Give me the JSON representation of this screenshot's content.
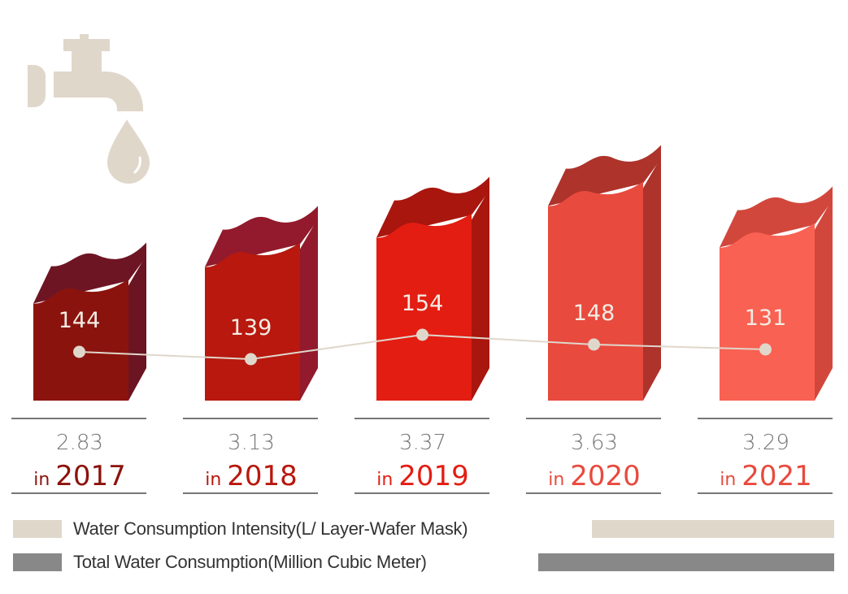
{
  "chart_data": {
    "type": "bar",
    "title": "",
    "xlabel": "",
    "ylabel": "",
    "categories": [
      "2017",
      "2018",
      "2019",
      "2020",
      "2021"
    ],
    "category_prefix": "in",
    "series": [
      {
        "name": "Total Water Consumption(Million Cubic Meter)",
        "kind": "bar",
        "values": [
          2.83,
          3.13,
          3.37,
          3.63,
          3.29
        ],
        "labels": [
          "2.83",
          "3.13",
          "3.37",
          "3.63",
          "3.29"
        ]
      },
      {
        "name": "Water Consumption  Intensity(L/ Layer-Wafer Mask)",
        "kind": "line",
        "values": [
          144,
          139,
          154,
          148,
          131
        ],
        "labels": [
          "144",
          "139",
          "154",
          "148",
          "131"
        ]
      }
    ],
    "bar_colors": [
      {
        "front": "#8b130d",
        "side": "#6b1422",
        "top": "#6e1524"
      },
      {
        "front": "#b8180e",
        "side": "#921a2c",
        "top": "#921a2c"
      },
      {
        "front": "#e31d12",
        "side": "#a8160e",
        "top": "#a8160e"
      },
      {
        "front": "#e84a3e",
        "side": "#ad332b",
        "top": "#ad332b"
      },
      {
        "front": "#f96152",
        "side": "#d2473c",
        "top": "#d2473c"
      }
    ],
    "year_colors": [
      "#8b130d",
      "#b8180e",
      "#e31d12",
      "#e84a3e",
      "#e84a3e"
    ],
    "line_color": "#e0d7cb",
    "value_label_color": "#777777",
    "legend": [
      {
        "label": "Water Consumption  Intensity(L/ Layer-Wafer Mask)",
        "color": "#e0d7cb"
      },
      {
        "label": "Total Water Consumption(Million Cubic Meter)",
        "color": "#888888"
      }
    ],
    "legend_position": "bottom",
    "grid": false
  },
  "icons": {
    "faucet": "faucet-with-water-drop-icon",
    "faucet_color": "#e0d7cb"
  }
}
